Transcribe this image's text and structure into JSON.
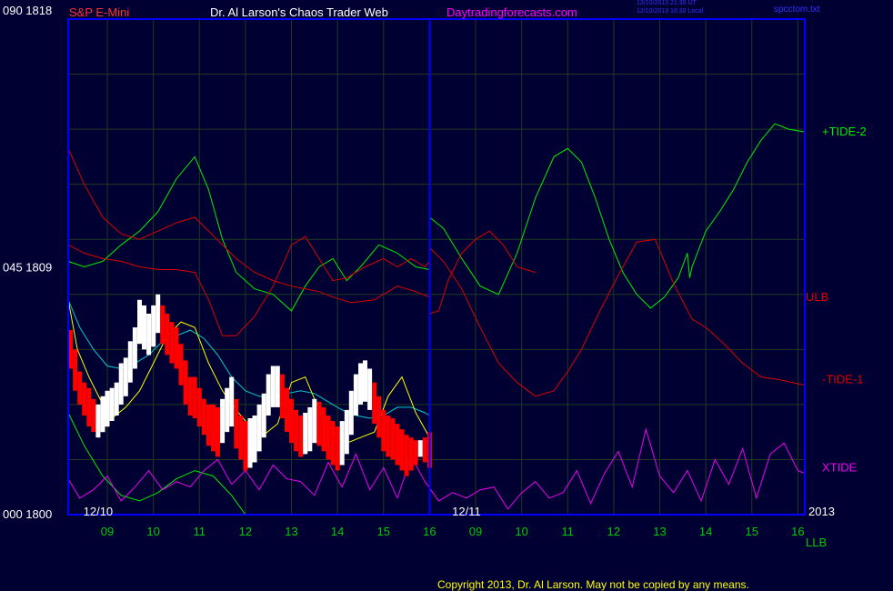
{
  "header": {
    "symbol": "S&P E-Mini",
    "title": "Dr. Al Larson's Chaos Trader Web",
    "site": "Daytradingforecasts.com",
    "stamp1": "12/10/2013 21:30 UT",
    "stamp2": "12/10/2013 16:30 Local",
    "file": "spcctom.txt"
  },
  "footer": {
    "copyright": "Copyright 2013, Dr. Al Larson. May not be copied by any means."
  },
  "colors": {
    "background": "#000033",
    "frame": "#0000ff",
    "grid": "#1f3a1f",
    "tide2": "#00ee00",
    "tide1": "#dd0000",
    "xtide": "#ee00ee",
    "price_up": "#ffffff",
    "price_down": "#ff0000",
    "ma_fast": "#ffff00",
    "ma_slow": "#00cccc",
    "symbol": "#ff3333",
    "title": "#ffffff",
    "site": "#ff00ff",
    "axis_text": "#00cc00"
  },
  "chart_data": {
    "type": "line",
    "ylim": [
      1800,
      1818
    ],
    "y_ticks": [
      {
        "code": "000",
        "value": "1800"
      },
      {
        "code": "045",
        "value": "1809"
      },
      {
        "code": "090",
        "value": "1818"
      }
    ],
    "x_ticks": [
      "09",
      "10",
      "11",
      "12",
      "13",
      "14",
      "15",
      "16",
      "09",
      "10",
      "11",
      "12",
      "13",
      "14",
      "15",
      "16"
    ],
    "x_tick_pos": [
      1,
      2,
      3,
      4,
      5,
      6,
      7,
      8,
      9,
      10,
      11,
      12,
      13,
      14,
      15,
      16
    ],
    "date_labels": [
      {
        "text": "12/10",
        "pos": 0.8
      },
      {
        "text": "12/11",
        "pos": 8.8
      }
    ],
    "year_label": "2013",
    "day_split": 8,
    "xlim": [
      0.15,
      16.15
    ],
    "right_labels": [
      {
        "text": "+TIDE-2",
        "y": 1813.9,
        "color": "#00ee00"
      },
      {
        "text": "ULB",
        "y": 1807.9,
        "color": "#dd0000"
      },
      {
        "text": "-TIDE-1",
        "y": 1804.9,
        "color": "#dd0000"
      },
      {
        "text": "XTIDE",
        "y": 1801.7,
        "color": "#ee00ee"
      }
    ],
    "bottom_right_label": "LLB",
    "series": [
      {
        "color": "#00ee00",
        "x": [
          0.15,
          0.5,
          0.9,
          1.3,
          1.7,
          2.1,
          2.5,
          2.9,
          3.2,
          3.5,
          3.8,
          4.2,
          4.6,
          5.0,
          5.3,
          5.6,
          5.9,
          6.2,
          6.5,
          6.9,
          7.3,
          7.7,
          8.0,
          8.0,
          8.3,
          8.7,
          9.1,
          9.5,
          9.9,
          10.3,
          10.7,
          11.0,
          11.3,
          11.6,
          11.9,
          12.2,
          12.5,
          12.8,
          13.1,
          13.4,
          13.6,
          13.65,
          13.7,
          14.0,
          14.3,
          14.6,
          14.9,
          15.2,
          15.5,
          15.8,
          16.15
        ],
        "y": [
          1809.2,
          1809.0,
          1809.2,
          1809.8,
          1810.3,
          1811.0,
          1812.2,
          1813.0,
          1811.8,
          1810.0,
          1808.8,
          1808.2,
          1808.0,
          1807.4,
          1808.3,
          1809.0,
          1809.3,
          1808.5,
          1809.0,
          1809.8,
          1809.5,
          1809.0,
          1808.9,
          1810.8,
          1810.4,
          1809.3,
          1808.3,
          1808.0,
          1809.5,
          1811.5,
          1813.0,
          1813.3,
          1812.8,
          1811.5,
          1810.0,
          1808.8,
          1808.0,
          1807.5,
          1807.9,
          1808.6,
          1809.5,
          1808.6,
          1809.0,
          1810.3,
          1811.0,
          1811.8,
          1812.8,
          1813.6,
          1814.2,
          1814.0,
          1813.9
        ]
      },
      {
        "color": "#dd0000",
        "x": [
          0.15,
          0.5,
          0.9,
          1.3,
          1.7,
          2.1,
          2.5,
          2.9,
          3.2,
          3.5,
          3.8,
          4.2,
          4.6,
          5.0,
          5.3,
          5.6,
          5.9,
          6.3,
          6.8,
          7.3,
          7.7,
          8.0,
          8.0,
          8.3,
          8.7,
          9.1,
          9.5,
          9.9,
          10.3,
          10.7,
          11.0,
          11.3,
          11.7,
          12.1,
          12.5,
          12.9,
          13.3,
          13.7,
          14.0,
          14.4,
          14.8,
          15.2,
          15.6,
          16.15
        ],
        "y": [
          1813.3,
          1812.0,
          1810.8,
          1810.2,
          1810.0,
          1810.3,
          1810.6,
          1810.8,
          1810.3,
          1809.8,
          1809.3,
          1808.8,
          1808.5,
          1808.3,
          1808.2,
          1808.1,
          1807.9,
          1807.7,
          1807.8,
          1808.3,
          1808.1,
          1807.9,
          1809.7,
          1809.2,
          1808.2,
          1806.8,
          1805.5,
          1804.8,
          1804.3,
          1804.5,
          1805.2,
          1806.0,
          1807.4,
          1808.7,
          1809.9,
          1810.0,
          1808.4,
          1807.1,
          1806.8,
          1806.2,
          1805.5,
          1805.0,
          1804.9,
          1804.7
        ]
      },
      {
        "color": "#dd0000",
        "x": [
          0.15,
          0.5,
          0.9,
          1.3,
          1.7,
          2.1,
          2.5,
          2.9,
          3.2,
          3.5,
          3.8,
          4.2,
          4.6,
          5.0,
          5.3,
          5.6,
          5.9,
          6.2,
          6.6,
          7.0,
          7.3,
          7.6,
          7.9,
          8.0,
          8.0,
          8.2,
          8.4,
          8.7,
          9.0,
          9.3,
          9.6,
          9.9,
          10.3
        ],
        "y": [
          1809.8,
          1809.5,
          1809.3,
          1809.2,
          1809.0,
          1808.9,
          1808.9,
          1808.8,
          1807.8,
          1806.5,
          1806.5,
          1807.2,
          1808.3,
          1809.8,
          1810.1,
          1809.3,
          1808.5,
          1808.6,
          1809.0,
          1809.3,
          1809.0,
          1809.3,
          1809.0,
          1809.2,
          1807.3,
          1807.4,
          1808.5,
          1809.5,
          1810.0,
          1810.3,
          1809.8,
          1809.0,
          1808.8
        ]
      },
      {
        "color": "#00ee00",
        "x": [
          0.15,
          0.5,
          0.9,
          1.3,
          1.7,
          2.1,
          2.5,
          2.9,
          3.3,
          3.7,
          4.0
        ],
        "y": [
          1803.7,
          1802.5,
          1801.4,
          1800.7,
          1800.5,
          1800.8,
          1801.3,
          1801.6,
          1801.4,
          1800.7,
          1800.0
        ]
      },
      {
        "color": "#00cccc",
        "x": [
          0.15,
          0.4,
          0.7,
          1.0,
          1.3,
          1.6,
          1.9,
          2.2,
          2.5,
          2.8,
          3.1,
          3.4,
          3.7,
          4.0,
          4.3,
          4.6,
          4.9,
          5.2,
          5.5,
          5.8,
          6.1,
          6.4,
          6.7,
          7.0,
          7.3,
          7.6,
          7.9,
          8.0
        ],
        "y": [
          1807.8,
          1806.8,
          1806.0,
          1805.4,
          1805.3,
          1805.5,
          1805.8,
          1806.3,
          1806.5,
          1806.7,
          1806.4,
          1805.8,
          1805.0,
          1804.5,
          1804.3,
          1804.2,
          1804.4,
          1804.5,
          1804.4,
          1804.1,
          1803.8,
          1803.6,
          1803.5,
          1803.6,
          1803.9,
          1803.9,
          1803.7,
          1803.6
        ]
      },
      {
        "color": "#ffff00",
        "x": [
          0.15,
          0.35,
          0.6,
          0.9,
          1.1,
          1.4,
          1.7,
          2.0,
          2.3,
          2.6,
          2.9,
          3.2,
          3.5,
          3.8,
          4.1,
          4.4,
          4.7,
          5.0,
          5.3,
          5.6,
          5.9,
          6.2,
          6.5,
          6.8,
          7.1,
          7.4,
          7.7,
          8.0
        ],
        "y": [
          1807.8,
          1806.0,
          1805.0,
          1804.0,
          1803.5,
          1803.9,
          1804.5,
          1805.5,
          1806.5,
          1807.0,
          1806.8,
          1805.5,
          1804.5,
          1803.8,
          1803.2,
          1802.9,
          1803.3,
          1804.8,
          1805.0,
          1803.8,
          1803.0,
          1802.6,
          1802.8,
          1803.0,
          1804.3,
          1805.0,
          1803.7,
          1802.8
        ]
      },
      {
        "color": "#ee00ee",
        "x": [
          0.15,
          0.4,
          0.7,
          1.0,
          1.3,
          1.6,
          1.9,
          2.2,
          2.5,
          2.8,
          3.1,
          3.4,
          3.7,
          4.0,
          4.3,
          4.6,
          4.9,
          5.2,
          5.5,
          5.8,
          6.1,
          6.4,
          6.7,
          7.0,
          7.3,
          7.6,
          7.9,
          8.2,
          8.5,
          8.8,
          9.1,
          9.4,
          9.7,
          10.0,
          10.3,
          10.6,
          10.9,
          11.2,
          11.5,
          11.8,
          12.1,
          12.4,
          12.7,
          13.0,
          13.3,
          13.6,
          13.9,
          14.2,
          14.5,
          14.8,
          15.1,
          15.4,
          15.7,
          16.0,
          16.15
        ],
        "y": [
          1801.3,
          1800.6,
          1800.9,
          1801.4,
          1800.5,
          1801.0,
          1801.6,
          1800.9,
          1801.2,
          1801.0,
          1801.6,
          1802.0,
          1801.1,
          1801.6,
          1800.9,
          1801.8,
          1801.3,
          1801.2,
          1800.7,
          1801.9,
          1801.0,
          1802.2,
          1800.9,
          1801.7,
          1800.6,
          1802.1,
          1801.2,
          1800.5,
          1800.8,
          1800.6,
          1800.9,
          1801.0,
          1800.2,
          1800.8,
          1801.2,
          1800.6,
          1800.8,
          1801.6,
          1800.4,
          1801.5,
          1802.3,
          1801.0,
          1803.1,
          1801.4,
          1800.8,
          1801.6,
          1800.5,
          1802.0,
          1801.1,
          1802.4,
          1800.6,
          1802.2,
          1802.6,
          1801.6,
          1801.5
        ]
      }
    ],
    "price": {
      "x": [
        0.2,
        0.3,
        0.4,
        0.5,
        0.6,
        0.7,
        0.8,
        0.9,
        1.0,
        1.1,
        1.2,
        1.3,
        1.4,
        1.5,
        1.6,
        1.7,
        1.8,
        1.9,
        2.0,
        2.1,
        2.2,
        2.3,
        2.4,
        2.5,
        2.6,
        2.7,
        2.8,
        2.9,
        3.0,
        3.1,
        3.2,
        3.3,
        3.4,
        3.5,
        3.6,
        3.7,
        3.8,
        3.9,
        4.0,
        4.1,
        4.2,
        4.3,
        4.4,
        4.5,
        4.6,
        4.7,
        4.8,
        4.9,
        5.0,
        5.1,
        5.2,
        5.3,
        5.4,
        5.5,
        5.6,
        5.7,
        5.8,
        5.9,
        6.0,
        6.1,
        6.2,
        6.3,
        6.4,
        6.5,
        6.6,
        6.7,
        6.8,
        6.9,
        7.0,
        7.1,
        7.2,
        7.3,
        7.4,
        7.5,
        7.6,
        7.7,
        7.8,
        7.9,
        8.0
      ],
      "high": [
        1806.7,
        1806.0,
        1805.2,
        1804.8,
        1804.6,
        1804.2,
        1804.0,
        1804.3,
        1804.5,
        1804.6,
        1804.8,
        1805.5,
        1805.7,
        1806.3,
        1806.8,
        1807.8,
        1807.6,
        1807.3,
        1807.6,
        1808.0,
        1807.6,
        1807.3,
        1807.0,
        1806.8,
        1806.2,
        1805.6,
        1805.0,
        1805.0,
        1804.6,
        1804.2,
        1804.0,
        1804.0,
        1803.9,
        1804.2,
        1804.6,
        1805.0,
        1804.2,
        1803.6,
        1803.4,
        1803.5,
        1803.6,
        1804.0,
        1804.4,
        1805.1,
        1805.4,
        1805.4,
        1805.1,
        1804.6,
        1804.2,
        1803.8,
        1803.6,
        1803.7,
        1803.9,
        1804.2,
        1804.1,
        1803.9,
        1803.6,
        1803.4,
        1803.2,
        1803.4,
        1803.8,
        1804.5,
        1805.1,
        1805.5,
        1805.6,
        1805.3,
        1804.8,
        1804.3,
        1803.8,
        1803.6,
        1803.5,
        1803.3,
        1803.1,
        1802.9,
        1802.8,
        1802.7,
        1802.7,
        1802.8,
        1803.0
      ],
      "low": [
        1805.3,
        1804.5,
        1804.0,
        1803.6,
        1803.2,
        1803.0,
        1802.8,
        1803.0,
        1803.2,
        1803.4,
        1803.6,
        1804.0,
        1804.3,
        1804.8,
        1805.3,
        1806.2,
        1806.0,
        1805.8,
        1806.1,
        1806.6,
        1806.2,
        1805.8,
        1805.5,
        1805.3,
        1804.7,
        1804.0,
        1803.6,
        1803.5,
        1803.2,
        1802.9,
        1802.5,
        1802.3,
        1802.1,
        1802.6,
        1803.0,
        1803.2,
        1802.4,
        1802.0,
        1801.6,
        1801.7,
        1801.9,
        1802.3,
        1802.8,
        1803.6,
        1803.9,
        1803.9,
        1803.5,
        1803.0,
        1802.6,
        1802.3,
        1802.1,
        1802.2,
        1802.3,
        1802.6,
        1802.5,
        1802.3,
        1802.0,
        1801.8,
        1801.6,
        1801.8,
        1802.2,
        1802.9,
        1803.6,
        1804.0,
        1804.1,
        1803.8,
        1803.3,
        1802.8,
        1802.3,
        1802.1,
        1802.0,
        1801.8,
        1801.6,
        1801.4,
        1801.6,
        1801.8,
        1802.1,
        1801.9,
        1801.7
      ],
      "up": [
        false,
        false,
        false,
        false,
        false,
        false,
        true,
        true,
        true,
        true,
        true,
        true,
        true,
        true,
        true,
        true,
        true,
        true,
        true,
        true,
        false,
        false,
        false,
        false,
        false,
        false,
        false,
        false,
        false,
        false,
        false,
        false,
        false,
        true,
        true,
        true,
        false,
        false,
        false,
        true,
        true,
        true,
        true,
        true,
        true,
        true,
        false,
        false,
        false,
        false,
        false,
        true,
        true,
        true,
        false,
        false,
        false,
        false,
        false,
        true,
        true,
        true,
        true,
        true,
        true,
        true,
        false,
        false,
        false,
        false,
        false,
        false,
        false,
        false,
        false,
        false,
        true,
        false,
        false
      ]
    }
  }
}
